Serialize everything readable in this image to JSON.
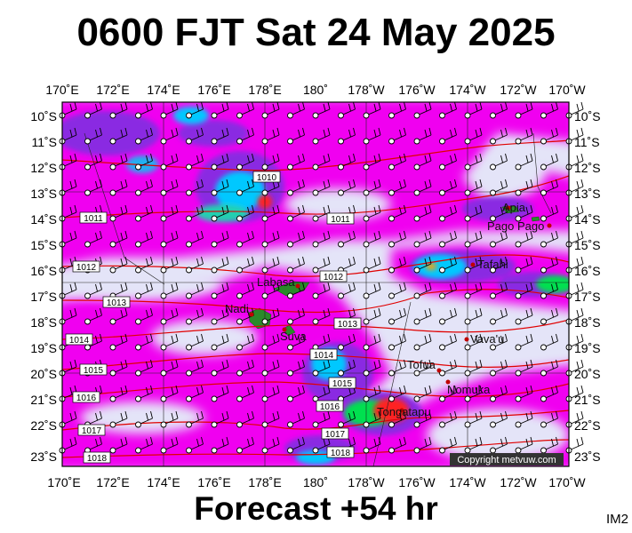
{
  "header": {
    "title": "0600 FJT Sat 24 May 2025"
  },
  "footer": {
    "forecast": "Forecast +54 hr",
    "product_code": "IM2"
  },
  "map": {
    "lon_ticks": [
      "170˚E",
      "172˚E",
      "174˚E",
      "176˚E",
      "178˚E",
      "180˚",
      "178˚W",
      "176˚W",
      "174˚W",
      "172˚W",
      "170˚W"
    ],
    "lat_ticks": [
      "10˚S",
      "11˚S",
      "12˚S",
      "13˚S",
      "14˚S",
      "15˚S",
      "16˚S",
      "17˚S",
      "18˚S",
      "19˚S",
      "20˚S",
      "21˚S",
      "22˚S",
      "23˚S"
    ],
    "places": [
      "Apia",
      "Pago Pago",
      "Tafahi",
      "Labasa",
      "Nadi",
      "Suva",
      "Vava'u",
      "Tofua",
      "Nomuka",
      "Tongatapu"
    ],
    "isobars": [
      "1010",
      "1011",
      "1011",
      "1012",
      "1012",
      "1013",
      "1013",
      "1014",
      "1014",
      "1015",
      "1015",
      "1016",
      "1016",
      "1017",
      "1017",
      "1018",
      "1018"
    ],
    "copyright": "Copyright metvuw.com",
    "colors": {
      "background_field": "#e4e4f8",
      "rain_light": "#f000f0",
      "rain_medium": "#8a2be2",
      "rain_heavy": "#00c8ff",
      "rain_extreme": "#ff2020",
      "isobar": "#e00000",
      "land": "#2a8a2a"
    }
  }
}
